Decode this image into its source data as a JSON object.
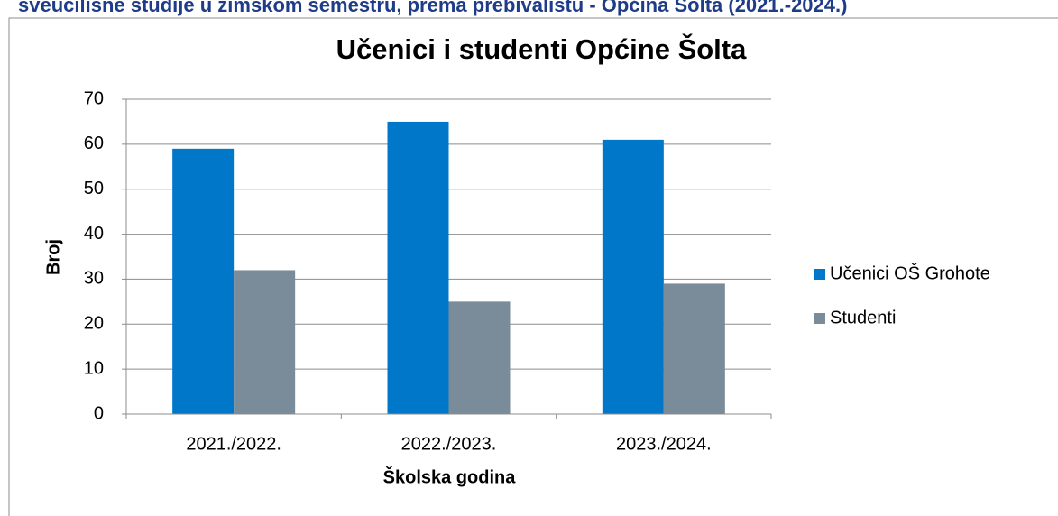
{
  "header": {
    "title": "sveučilišne studije u zimskom semestru, prema prebivalištu - Općina Šolta (2021.-2024.)"
  },
  "chart_data": {
    "type": "bar",
    "title": "Učenici i studenti Općine Šolta",
    "x_label": "Školska godina",
    "y_label": "Broj",
    "categories": [
      "2021./2022.",
      "2022./2023.",
      "2023./2024."
    ],
    "series": [
      {
        "name": "Učenici OŠ Grohote",
        "color": "#0077c8",
        "values": [
          59,
          65,
          61
        ]
      },
      {
        "name": "Studenti",
        "color": "#7a8b9a",
        "values": [
          32,
          25,
          29
        ]
      }
    ],
    "ylim": [
      0,
      70
    ],
    "yticks": [
      0,
      10,
      20,
      30,
      40,
      50,
      60,
      70
    ],
    "grid": true,
    "legend": "right"
  }
}
